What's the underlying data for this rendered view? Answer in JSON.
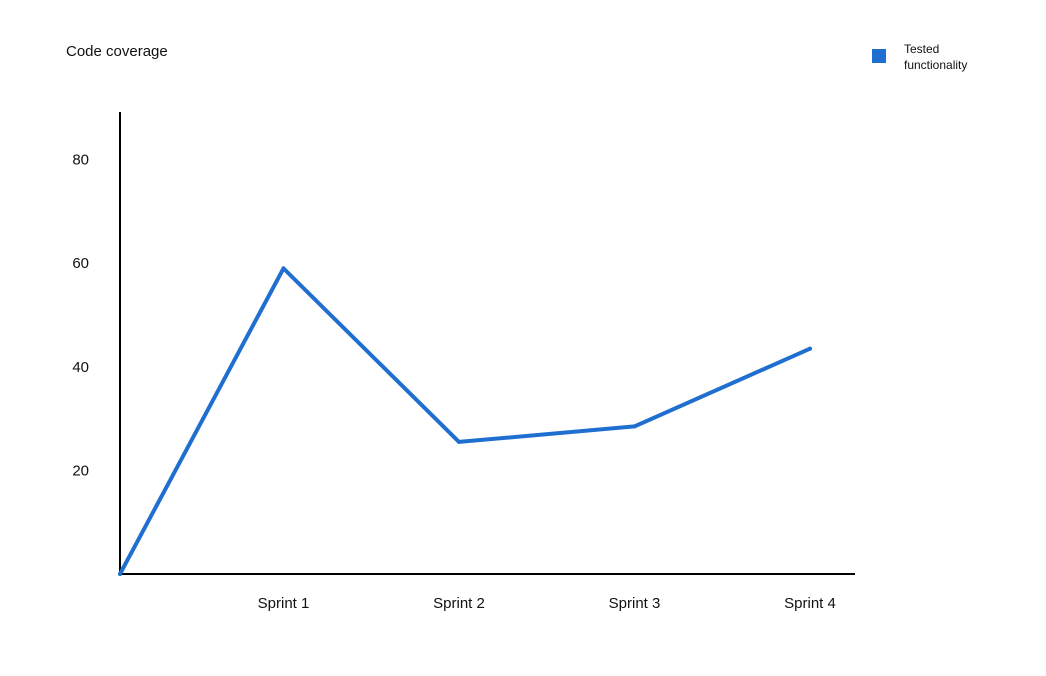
{
  "chart_data": {
    "type": "line",
    "title": "Code coverage",
    "categories": [
      "",
      "Sprint 1",
      "Sprint 2",
      "Sprint 3",
      "Sprint 4"
    ],
    "series": [
      {
        "name": "Tested functionality",
        "values": [
          0,
          59,
          25.5,
          28.5,
          43.5
        ],
        "color": "#1f6fd0"
      }
    ],
    "yticks": [
      20,
      40,
      60,
      80
    ],
    "ylim": [
      0,
      90
    ],
    "xlabel": "",
    "ylabel": "",
    "grid": false,
    "legend_position": "top-right"
  }
}
